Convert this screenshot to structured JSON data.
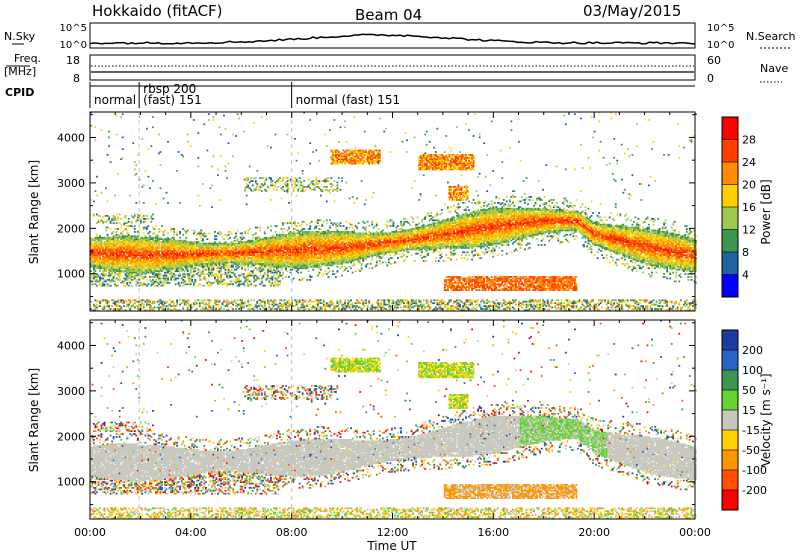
{
  "header": {
    "station": "Hokkaido (fitACF)",
    "beam": "Beam 04",
    "date": "03/May/2015"
  },
  "strip_labels": {
    "nsky": "N.Sky",
    "nsky_ticks": [
      "10^5",
      "10^0"
    ],
    "nsearch": "N.Search",
    "nsearch_ticks": [
      "10^5",
      "10^0"
    ],
    "freq_line1": "Freq.",
    "freq_line2": "[MHz]",
    "freq_ticks": [
      "18",
      "8"
    ],
    "nave": "Nave",
    "nave_ticks": [
      "60",
      "0"
    ],
    "cpid": "CPID"
  },
  "cpid_segments": [
    {
      "start_hour": 0,
      "end_hour": 1.95,
      "line1": "normal",
      "line2": ""
    },
    {
      "start_hour": 1.95,
      "end_hour": 8.0,
      "line1": "rbsp 200",
      "line2": "(fast) 151"
    },
    {
      "start_hour": 8.0,
      "end_hour": 24,
      "line1": "normal (fast)  151",
      "line2": ""
    }
  ],
  "colorbars": {
    "power": {
      "label": "Power [dB]",
      "ticks": [
        "28",
        "24",
        "20",
        "16",
        "12",
        "8",
        "4"
      ],
      "colors": [
        "#ff0000",
        "#ff4000",
        "#ff8c00",
        "#ffd000",
        "#a0c850",
        "#3c9650",
        "#1e64a0",
        "#0000ff"
      ]
    },
    "velocity": {
      "label": "Velocity [m s⁻¹]",
      "ticks": [
        "200",
        "100",
        "50",
        "15",
        "-15",
        "-50",
        "-100",
        "-200"
      ],
      "colors": [
        "#1e3ca0",
        "#2864c8",
        "#3c9650",
        "#64d232",
        "#c8c8be",
        "#ffd200",
        "#ff9600",
        "#ff5000",
        "#ff0000"
      ]
    }
  },
  "chart_data": [
    {
      "type": "heatmap",
      "title": "Power",
      "ylabel": "Slant Range [km]",
      "xlabel": "Time UT",
      "x_ticks": [
        "00:00",
        "04:00",
        "08:00",
        "12:00",
        "16:00",
        "20:00",
        "00:00"
      ],
      "y_ticks": [
        1000,
        2000,
        3000,
        4000
      ],
      "xlim_hours": [
        0,
        24
      ],
      "ylim_km": [
        180,
        4560
      ],
      "main_band": [
        {
          "hour": 0,
          "range_km": 1450
        },
        {
          "hour": 2,
          "range_km": 1400
        },
        {
          "hour": 4,
          "range_km": 1420
        },
        {
          "hour": 6,
          "range_km": 1450
        },
        {
          "hour": 8,
          "range_km": 1500
        },
        {
          "hour": 10,
          "range_km": 1560
        },
        {
          "hour": 12,
          "range_km": 1680
        },
        {
          "hour": 14,
          "range_km": 1850
        },
        {
          "hour": 16,
          "range_km": 2030
        },
        {
          "hour": 18,
          "range_km": 2150
        },
        {
          "hour": 19.3,
          "range_km": 2150
        },
        {
          "hour": 20,
          "range_km": 1860
        },
        {
          "hour": 22,
          "range_km": 1590
        },
        {
          "hour": 24,
          "range_km": 1390
        }
      ]
    },
    {
      "type": "heatmap",
      "title": "Velocity",
      "ylabel": "Slant Range [km]",
      "xlabel": "Time UT",
      "x_ticks": [
        "00:00",
        "04:00",
        "08:00",
        "12:00",
        "16:00",
        "20:00",
        "00:00"
      ],
      "y_ticks": [
        1000,
        2000,
        3000,
        4000
      ],
      "xlim_hours": [
        0,
        24
      ],
      "ylim_km": [
        180,
        4560
      ]
    }
  ],
  "xaxis_label": "Time UT"
}
